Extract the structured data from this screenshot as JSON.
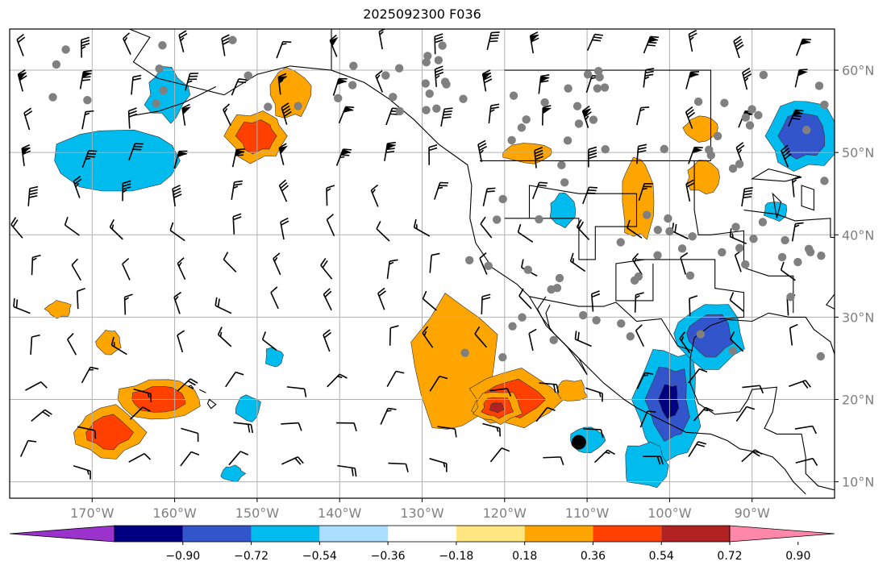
{
  "title": "2025092300 F036",
  "map": {
    "lon_range": [
      -180,
      -80
    ],
    "lat_range": [
      8,
      65
    ],
    "lat_ticks": [
      {
        "value": 60,
        "label": "60°N"
      },
      {
        "value": 50,
        "label": "50°N"
      },
      {
        "value": 40,
        "label": "40°N"
      },
      {
        "value": 30,
        "label": "30°N"
      },
      {
        "value": 20,
        "label": "20°N"
      },
      {
        "value": 10,
        "label": "10°N"
      }
    ],
    "lon_ticks": [
      {
        "value": -170,
        "label": "170°W"
      },
      {
        "value": -160,
        "label": "160°W"
      },
      {
        "value": -150,
        "label": "150°W"
      },
      {
        "value": -140,
        "label": "140°W"
      },
      {
        "value": -130,
        "label": "130°W"
      },
      {
        "value": -120,
        "label": "120°W"
      },
      {
        "value": -110,
        "label": "110°W"
      },
      {
        "value": -100,
        "label": "100°W"
      },
      {
        "value": -90,
        "label": "90°W"
      }
    ],
    "grid": true,
    "colors": {
      "land": "#000000",
      "grid": "#b0b0b0",
      "barb": "#000000",
      "station": "#808080",
      "label": "#808080"
    },
    "positive_regions": [
      {
        "lon": -150,
        "lat": 52,
        "rlon": 3.5,
        "rlat": 3,
        "level": 2
      },
      {
        "lon": -146,
        "lat": 57,
        "rlon": 2.5,
        "rlat": 3,
        "level": 1
      },
      {
        "lon": -126,
        "lat": 24,
        "rlon": 5,
        "rlat": 8,
        "level": 1
      },
      {
        "lon": -119,
        "lat": 20,
        "rlon": 5.5,
        "rlat": 3.5,
        "level": 2
      },
      {
        "lon": -121,
        "lat": 19,
        "rlon": 3,
        "rlat": 2,
        "level": 3
      },
      {
        "lon": -162,
        "lat": 20,
        "rlon": 5,
        "rlat": 2.5,
        "level": 2
      },
      {
        "lon": -168,
        "lat": 16,
        "rlon": 4,
        "rlat": 3,
        "level": 2
      },
      {
        "lon": -104,
        "lat": 44,
        "rlon": 2,
        "rlat": 5,
        "level": 1
      },
      {
        "lon": -96,
        "lat": 53,
        "rlon": 2,
        "rlat": 1.5,
        "level": 1
      },
      {
        "lon": -96,
        "lat": 47,
        "rlon": 2,
        "rlat": 2,
        "level": 1
      },
      {
        "lon": -117,
        "lat": 50,
        "rlon": 3,
        "rlat": 1.2,
        "level": 1
      },
      {
        "lon": -112,
        "lat": 21,
        "rlon": 2,
        "rlat": 1.5,
        "level": 1
      },
      {
        "lon": -174,
        "lat": 31,
        "rlon": 1.5,
        "rlat": 1,
        "level": 1
      },
      {
        "lon": -168,
        "lat": 27,
        "rlon": 1.5,
        "rlat": 1.5,
        "level": 1
      }
    ],
    "negative_regions": [
      {
        "lon": -167,
        "lat": 49,
        "rlon": 8,
        "rlat": 4,
        "level": 1
      },
      {
        "lon": -161,
        "lat": 57,
        "rlon": 2.5,
        "rlat": 3,
        "level": 1
      },
      {
        "lon": -84,
        "lat": 52,
        "rlon": 4,
        "rlat": 4,
        "level": 2
      },
      {
        "lon": -100,
        "lat": 20,
        "rlon": 4,
        "rlat": 7,
        "level": 3
      },
      {
        "lon": -95,
        "lat": 28,
        "rlon": 4,
        "rlat": 4,
        "level": 2
      },
      {
        "lon": -103,
        "lat": 12,
        "rlon": 3,
        "rlat": 3,
        "level": 1
      },
      {
        "lon": -110,
        "lat": 15,
        "rlon": 2,
        "rlat": 1.5,
        "level": 1
      },
      {
        "lon": -151,
        "lat": 19,
        "rlon": 1.5,
        "rlat": 1.5,
        "level": 1
      },
      {
        "lon": -148,
        "lat": 25,
        "rlon": 1.2,
        "rlat": 1.2,
        "level": 1
      },
      {
        "lon": -113,
        "lat": 43,
        "rlon": 1.5,
        "rlat": 2,
        "level": 1
      },
      {
        "lon": -87,
        "lat": 43,
        "rlon": 1.5,
        "rlat": 1.2,
        "level": 1
      },
      {
        "lon": -153,
        "lat": 11,
        "rlon": 1.5,
        "rlat": 1,
        "level": 1
      }
    ]
  },
  "colorbar": {
    "colors": [
      "#9933cc",
      "#000080",
      "#3355cc",
      "#00bbee",
      "#aaddff",
      "#ffffff",
      "#ffe680",
      "#ffa500",
      "#ff4000",
      "#b22222",
      "#ff88aa"
    ],
    "labels": [
      "−0.90",
      "−0.72",
      "−0.54",
      "−0.36",
      "−0.18",
      "0.18",
      "0.36",
      "0.54",
      "0.72",
      "0.90"
    ]
  }
}
